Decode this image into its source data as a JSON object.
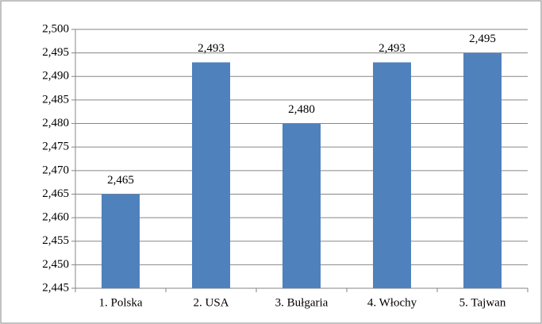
{
  "chart_data": {
    "type": "bar",
    "categories": [
      "1. Polska",
      "2. USA",
      "3. Bułgaria",
      "4. Włochy",
      "5. Tajwan"
    ],
    "values": [
      2.465,
      2.493,
      2.48,
      2.493,
      2.495
    ],
    "value_labels": [
      "2,465",
      "2,493",
      "2,480",
      "2,493",
      "2,495"
    ],
    "color": "#4f81bd",
    "ylim": [
      2.445,
      2.5
    ],
    "yticks": [
      {
        "value": 2.445,
        "label": "2,445"
      },
      {
        "value": 2.45,
        "label": "2,450"
      },
      {
        "value": 2.455,
        "label": "2,455"
      },
      {
        "value": 2.46,
        "label": "2,460"
      },
      {
        "value": 2.465,
        "label": "2,465"
      },
      {
        "value": 2.47,
        "label": "2,470"
      },
      {
        "value": 2.475,
        "label": "2,475"
      },
      {
        "value": 2.48,
        "label": "2,480"
      },
      {
        "value": 2.485,
        "label": "2,485"
      },
      {
        "value": 2.49,
        "label": "2,490"
      },
      {
        "value": 2.495,
        "label": "2,495"
      },
      {
        "value": 2.5,
        "label": "2,500"
      }
    ],
    "grid": true
  }
}
